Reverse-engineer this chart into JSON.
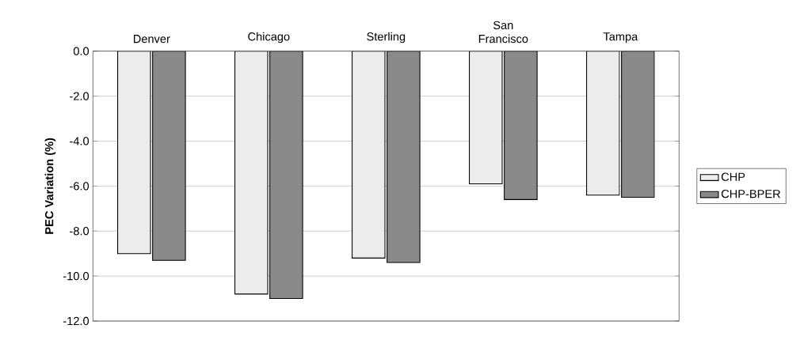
{
  "chart_data": {
    "type": "bar",
    "ylabel": "PEC Variation (%)",
    "categories": [
      "Denver",
      "Chicago",
      "Sterling",
      "San Francisco",
      "Tampa"
    ],
    "series": [
      {
        "name": "CHP",
        "color": "#ececec",
        "values": [
          -9.0,
          -10.8,
          -9.2,
          -5.9,
          -6.4
        ]
      },
      {
        "name": "CHP-BPER",
        "color": "#8a8a8a",
        "values": [
          -9.3,
          -11.0,
          -9.4,
          -6.6,
          -6.5
        ]
      }
    ],
    "ylim": [
      -12,
      0
    ],
    "yticks": [
      {
        "value": -12,
        "label": "-12.0"
      },
      {
        "value": -10,
        "label": "-10.0"
      },
      {
        "value": -8,
        "label": "-8.0"
      },
      {
        "value": -6,
        "label": "-6.0"
      },
      {
        "value": -4,
        "label": "-4.0"
      },
      {
        "value": -2,
        "label": "-2.0"
      },
      {
        "value": 0,
        "label": "0.0"
      }
    ],
    "grid": "y",
    "legend": "right"
  }
}
